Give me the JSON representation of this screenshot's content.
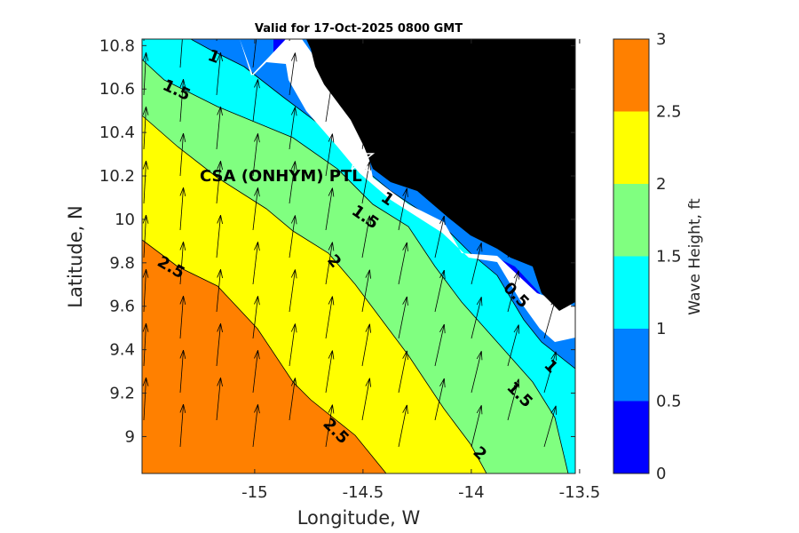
{
  "chart_data": {
    "type": "heatmap",
    "subtype": "filled-contour map with wave direction vectors",
    "title": "Valid for 17-Oct-2025 0800 GMT",
    "xlabel": "Longitude, W",
    "ylabel": "Latitude, N",
    "xlim": [
      -15.52,
      -13.52
    ],
    "ylim": [
      8.83,
      10.83
    ],
    "xticks": [
      "-15",
      "-14.5",
      "-14",
      "-13.5"
    ],
    "xtick_values": [
      -15,
      -14.5,
      -14,
      -13.5
    ],
    "yticks": [
      "9",
      "9.2",
      "9.4",
      "9.6",
      "9.8",
      "10",
      "10.2",
      "10.4",
      "10.6",
      "10.8"
    ],
    "ytick_values": [
      9,
      9.2,
      9.4,
      9.6,
      9.8,
      10,
      10.2,
      10.4,
      10.6,
      10.8
    ],
    "colorbar": {
      "label": "Wave Height, ft",
      "ticks": [
        "0",
        "0.5",
        "1",
        "1.5",
        "2",
        "2.5",
        "3"
      ],
      "levels": [
        0,
        0.5,
        1,
        1.5,
        2,
        2.5,
        3
      ],
      "colors": [
        "#0000ff",
        "#0080ff",
        "#00ffff",
        "#80ff80",
        "#ffff00",
        "#ff8000"
      ]
    },
    "contour_labels": [
      "1",
      "1.5",
      "1",
      "1.5",
      "2",
      "2.5",
      "0.5",
      "1",
      "1.5",
      "2.5",
      "2"
    ],
    "site_label": "CSA (ONHYM) PTL",
    "land_color": "#000000",
    "vector_direction": "toward north / north-northeast"
  }
}
